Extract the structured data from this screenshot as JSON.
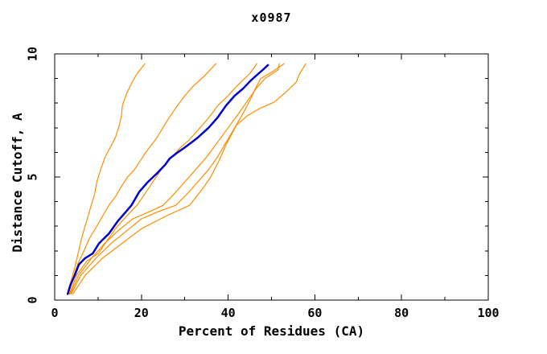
{
  "chart_data": {
    "type": "line",
    "title": "x0987",
    "xlabel": "Percent of Residues (CA)",
    "ylabel": "Distance Cutoff, A",
    "xlim": [
      0,
      100
    ],
    "ylim": [
      0,
      10
    ],
    "x_major_ticks": [
      0,
      20,
      40,
      60,
      80,
      100
    ],
    "x_minor_tick_step": 10,
    "y_major_ticks": [
      0,
      5,
      10
    ],
    "y_minor_tick_step": 1,
    "grid": false,
    "legend": "none",
    "tick_style": "inside, mirrored on top and right frame edges; y tick labels rotated 90",
    "colors": {
      "frame": "#000000",
      "highlight_model": "#0000cd",
      "other_models": "#ff8c00"
    },
    "series": [
      {
        "name": "orange-curve-1",
        "role": "other",
        "points": [
          [
            2.9,
            0.25
          ],
          [
            3.8,
            0.8
          ],
          [
            4.6,
            1.3
          ],
          [
            5.4,
            1.9
          ],
          [
            6.2,
            2.5
          ],
          [
            7.0,
            3.0
          ],
          [
            7.7,
            3.4
          ],
          [
            8.4,
            3.85
          ],
          [
            9.2,
            4.3
          ],
          [
            9.7,
            4.8
          ],
          [
            10.6,
            5.3
          ],
          [
            11.6,
            5.8
          ],
          [
            12.8,
            6.2
          ],
          [
            14.0,
            6.6
          ],
          [
            14.9,
            7.1
          ],
          [
            15.4,
            7.5
          ],
          [
            15.6,
            7.9
          ],
          [
            16.6,
            8.4
          ],
          [
            17.7,
            8.8
          ],
          [
            19.0,
            9.2
          ],
          [
            20.8,
            9.6
          ]
        ]
      },
      {
        "name": "orange-curve-2",
        "role": "other",
        "points": [
          [
            3.2,
            0.25
          ],
          [
            4.4,
            1.0
          ],
          [
            5.4,
            1.5
          ],
          [
            6.5,
            1.9
          ],
          [
            8.0,
            2.5
          ],
          [
            9.7,
            3.0
          ],
          [
            11.0,
            3.4
          ],
          [
            12.5,
            3.85
          ],
          [
            14.0,
            4.2
          ],
          [
            15.3,
            4.6
          ],
          [
            16.8,
            5.0
          ],
          [
            18.4,
            5.3
          ],
          [
            21.0,
            6.0
          ],
          [
            23.6,
            6.6
          ],
          [
            26.0,
            7.3
          ],
          [
            28.3,
            7.9
          ],
          [
            30.0,
            8.3
          ],
          [
            32.0,
            8.7
          ],
          [
            34.5,
            9.1
          ],
          [
            37.2,
            9.6
          ]
        ]
      },
      {
        "name": "orange-curve-3",
        "role": "other",
        "points": [
          [
            3.4,
            0.25
          ],
          [
            5.0,
            1.0
          ],
          [
            7.5,
            1.6
          ],
          [
            10.1,
            1.9
          ],
          [
            12.0,
            2.4
          ],
          [
            14.0,
            2.9
          ],
          [
            16.5,
            3.4
          ],
          [
            19.0,
            3.85
          ],
          [
            21.5,
            4.5
          ],
          [
            23.0,
            4.9
          ],
          [
            24.6,
            5.3
          ],
          [
            27.0,
            5.8
          ],
          [
            29.0,
            6.2
          ],
          [
            31.0,
            6.5
          ],
          [
            33.5,
            7.0
          ],
          [
            35.5,
            7.4
          ],
          [
            37.6,
            7.9
          ],
          [
            40.0,
            8.3
          ],
          [
            41.5,
            8.6
          ],
          [
            43.2,
            8.9
          ],
          [
            45.0,
            9.2
          ],
          [
            46.6,
            9.6
          ]
        ]
      },
      {
        "name": "orange-curve-4",
        "role": "other",
        "points": [
          [
            3.6,
            0.25
          ],
          [
            5.5,
            1.0
          ],
          [
            8.5,
            1.7
          ],
          [
            11.5,
            2.3
          ],
          [
            14.5,
            2.8
          ],
          [
            18.0,
            3.3
          ],
          [
            22.0,
            3.6
          ],
          [
            25.0,
            3.85
          ],
          [
            27.5,
            4.3
          ],
          [
            30.0,
            4.8
          ],
          [
            32.5,
            5.3
          ],
          [
            35.0,
            5.8
          ],
          [
            37.5,
            6.4
          ],
          [
            40.0,
            7.0
          ],
          [
            42.5,
            7.6
          ],
          [
            44.5,
            8.1
          ],
          [
            46.5,
            8.6
          ],
          [
            48.5,
            9.0
          ],
          [
            51.5,
            9.35
          ],
          [
            51.8,
            9.6
          ]
        ]
      },
      {
        "name": "orange-curve-5",
        "role": "other",
        "points": [
          [
            3.8,
            0.25
          ],
          [
            6.0,
            1.0
          ],
          [
            9.5,
            1.7
          ],
          [
            13.0,
            2.3
          ],
          [
            16.5,
            2.8
          ],
          [
            20.0,
            3.3
          ],
          [
            24.0,
            3.6
          ],
          [
            27.9,
            3.85
          ],
          [
            30.5,
            4.3
          ],
          [
            33.0,
            4.8
          ],
          [
            35.5,
            5.3
          ],
          [
            37.5,
            5.8
          ],
          [
            39.5,
            6.4
          ],
          [
            41.5,
            7.0
          ],
          [
            43.5,
            7.6
          ],
          [
            45.0,
            8.1
          ],
          [
            46.3,
            8.6
          ],
          [
            47.5,
            9.0
          ],
          [
            50.0,
            9.25
          ],
          [
            52.9,
            9.6
          ]
        ]
      },
      {
        "name": "orange-curve-6",
        "role": "other",
        "points": [
          [
            4.2,
            0.25
          ],
          [
            7.0,
            1.0
          ],
          [
            11.0,
            1.7
          ],
          [
            15.5,
            2.3
          ],
          [
            20.0,
            2.9
          ],
          [
            25.5,
            3.4
          ],
          [
            31.1,
            3.85
          ],
          [
            34.0,
            4.5
          ],
          [
            36.0,
            5.0
          ],
          [
            38.0,
            5.7
          ],
          [
            39.5,
            6.3
          ],
          [
            41.0,
            6.8
          ],
          [
            41.9,
            7.1
          ],
          [
            44.5,
            7.5
          ],
          [
            47.5,
            7.8
          ],
          [
            50.7,
            8.05
          ],
          [
            53.0,
            8.4
          ],
          [
            55.7,
            8.85
          ],
          [
            56.5,
            9.2
          ],
          [
            57.9,
            9.6
          ]
        ]
      },
      {
        "name": "blue-highlight-curve",
        "role": "highlight",
        "points": [
          [
            3.0,
            0.25
          ],
          [
            3.6,
            0.6
          ],
          [
            4.6,
            1.0
          ],
          [
            5.6,
            1.45
          ],
          [
            7.0,
            1.7
          ],
          [
            8.8,
            1.9
          ],
          [
            10.2,
            2.3
          ],
          [
            12.5,
            2.7
          ],
          [
            14.5,
            3.2
          ],
          [
            16.0,
            3.5
          ],
          [
            17.7,
            3.85
          ],
          [
            19.5,
            4.4
          ],
          [
            21.5,
            4.8
          ],
          [
            23.6,
            5.15
          ],
          [
            25.5,
            5.5
          ],
          [
            26.5,
            5.75
          ],
          [
            28.0,
            5.95
          ],
          [
            30.0,
            6.2
          ],
          [
            31.5,
            6.4
          ],
          [
            33.0,
            6.6
          ],
          [
            35.5,
            7.0
          ],
          [
            37.5,
            7.4
          ],
          [
            39.5,
            7.9
          ],
          [
            41.5,
            8.3
          ],
          [
            43.5,
            8.6
          ],
          [
            45.1,
            8.9
          ],
          [
            47.0,
            9.2
          ],
          [
            48.3,
            9.4
          ],
          [
            49.2,
            9.55
          ]
        ]
      }
    ]
  }
}
